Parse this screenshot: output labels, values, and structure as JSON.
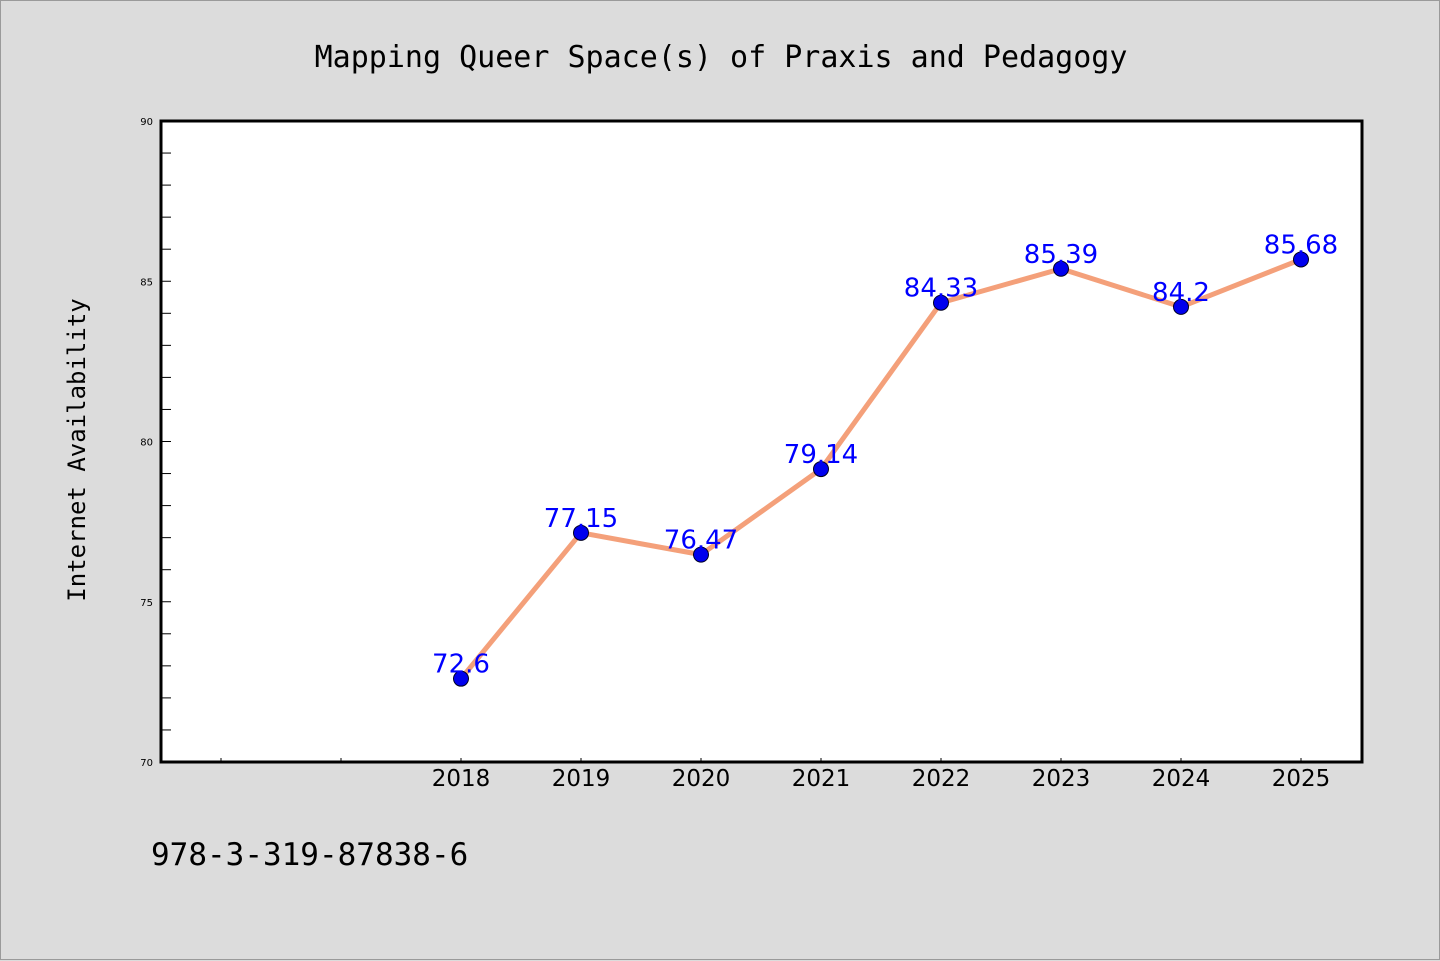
{
  "chart_data": {
    "type": "line",
    "title": "Mapping Queer Space(s) of Praxis and Pedagogy",
    "xlabel": "",
    "ylabel": "Internet Availability",
    "categories": [
      "2018",
      "2019",
      "2020",
      "2021",
      "2022",
      "2023",
      "2024",
      "2025"
    ],
    "series": [
      {
        "values": [
          72.6,
          77.15,
          76.47,
          79.14,
          84.33,
          85.39,
          84.2,
          85.68
        ],
        "labels": [
          "72.6",
          "77.15",
          "76.47",
          "79.14",
          "84.33",
          "85.39",
          "84.2",
          "85.68"
        ]
      }
    ],
    "ylim": [
      70,
      90
    ],
    "yticks": [
      "70",
      "75",
      "80",
      "85",
      "90"
    ],
    "grid": false,
    "legend": "none",
    "colors": {
      "line": "#f4a07a",
      "marker": "#0000ee",
      "label": "#0000ff",
      "background": "#dcdcdc",
      "plot_background": "#ffffff"
    }
  },
  "footer": {
    "isbn": "978-3-319-87838-6"
  }
}
